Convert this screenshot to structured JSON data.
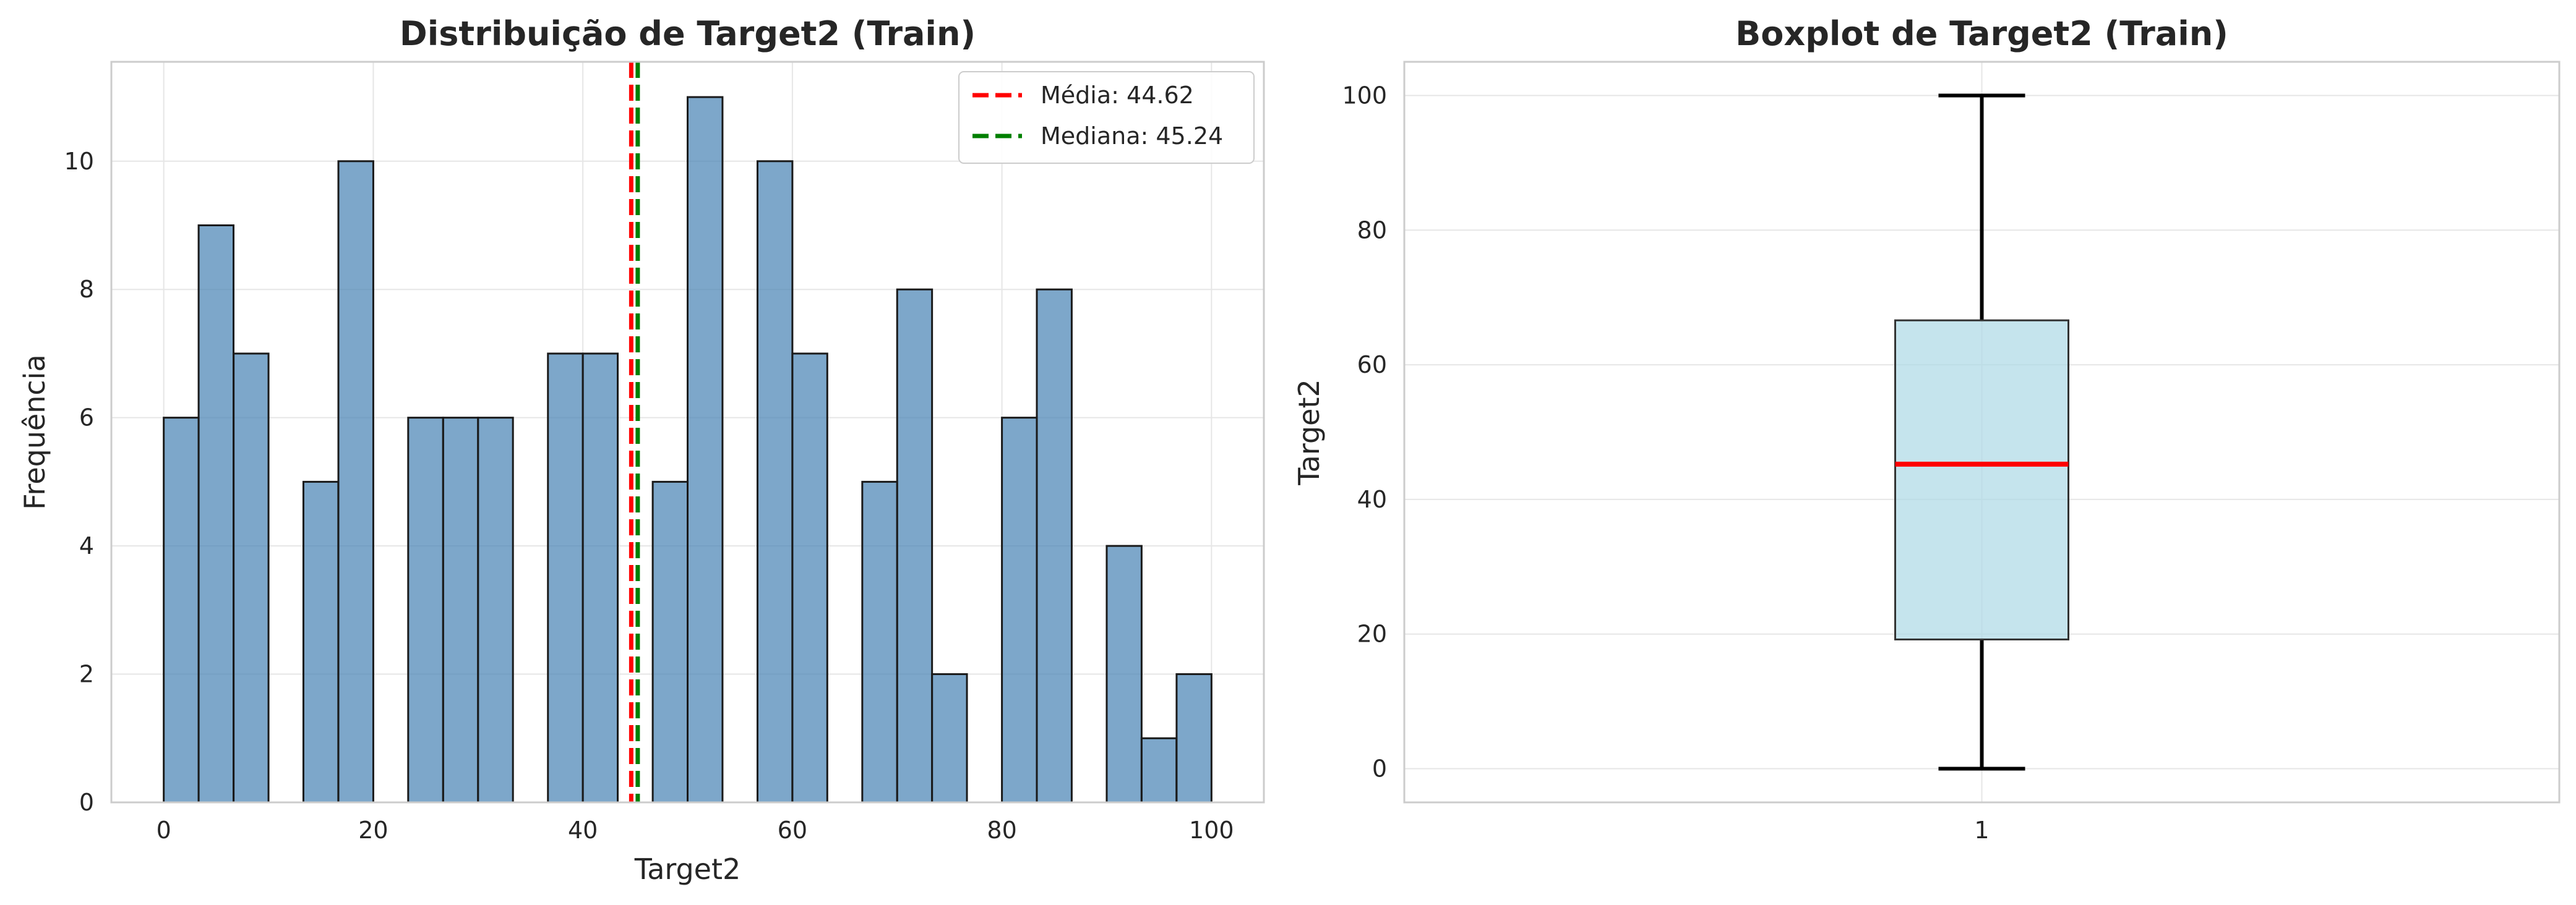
{
  "colors": {
    "bar_fill": "#4682b4",
    "bar_edge": "#1a1a1a",
    "mean_line": "#ff0000",
    "median_line": "#008000",
    "box_fill": "#add8e6",
    "box_median": "#ff0000",
    "grid": "#e6e6e6",
    "spine": "#cccccc"
  },
  "chart_data": [
    {
      "type": "bar",
      "subtype": "histogram",
      "title": "Distribuição de Target2 (Train)",
      "xlabel": "Target2",
      "ylabel": "Frequência",
      "xlim": [
        -5,
        105
      ],
      "ylim": [
        0,
        11.55
      ],
      "xticks": [
        0,
        20,
        40,
        60,
        80,
        100
      ],
      "yticks": [
        0,
        2,
        4,
        6,
        8,
        10
      ],
      "bin_width": 3.33,
      "bins": [
        {
          "x": 0,
          "count": 6
        },
        {
          "x": 3.33,
          "count": 9
        },
        {
          "x": 6.67,
          "count": 7
        },
        {
          "x": 10,
          "count": 0
        },
        {
          "x": 13.33,
          "count": 5
        },
        {
          "x": 16.67,
          "count": 10
        },
        {
          "x": 20,
          "count": 0
        },
        {
          "x": 23.33,
          "count": 6
        },
        {
          "x": 26.67,
          "count": 6
        },
        {
          "x": 30,
          "count": 6
        },
        {
          "x": 33.33,
          "count": 0
        },
        {
          "x": 36.67,
          "count": 7
        },
        {
          "x": 40,
          "count": 7
        },
        {
          "x": 43.33,
          "count": 0
        },
        {
          "x": 46.67,
          "count": 5
        },
        {
          "x": 50,
          "count": 11
        },
        {
          "x": 53.33,
          "count": 0
        },
        {
          "x": 56.67,
          "count": 10
        },
        {
          "x": 60,
          "count": 7
        },
        {
          "x": 63.33,
          "count": 0
        },
        {
          "x": 66.67,
          "count": 5
        },
        {
          "x": 70,
          "count": 8
        },
        {
          "x": 73.33,
          "count": 2
        },
        {
          "x": 76.67,
          "count": 0
        },
        {
          "x": 80,
          "count": 6
        },
        {
          "x": 83.33,
          "count": 8
        },
        {
          "x": 86.67,
          "count": 0
        },
        {
          "x": 90,
          "count": 4
        },
        {
          "x": 93.33,
          "count": 1
        },
        {
          "x": 96.67,
          "count": 2
        }
      ],
      "lines": [
        {
          "name": "Média: 44.62",
          "x": 44.62,
          "color": "#ff0000",
          "style": "dashed"
        },
        {
          "name": "Mediana: 45.24",
          "x": 45.24,
          "color": "#008000",
          "style": "dashed"
        }
      ],
      "legend": "top-right",
      "grid": true
    },
    {
      "type": "boxplot",
      "title": "Boxplot de Target2 (Train)",
      "xlabel": "",
      "ylabel": "Target2",
      "ylim": [
        -5,
        105
      ],
      "yticks": [
        0,
        20,
        40,
        60,
        80,
        100
      ],
      "xticks": [
        "1"
      ],
      "box": {
        "min": 0,
        "q1": 19.2,
        "median": 45.24,
        "q3": 66.6,
        "max": 100
      },
      "grid": true
    }
  ]
}
